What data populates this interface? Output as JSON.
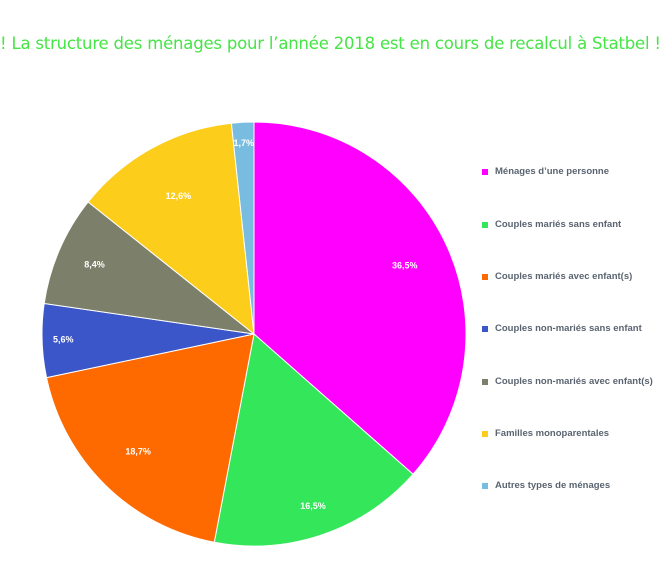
{
  "title": "! La structure des ménages pour l’année 2018 est en cours de recalcul à Statbel !",
  "chart_data": {
    "type": "pie",
    "title": "! La structure des ménages pour l’année 2018 est en cours de recalcul à Statbel !",
    "legend_position": "right",
    "slices": [
      {
        "name": " Ménages d’une personne",
        "value": 36.5,
        "label": "36,5%",
        "color": "#ff00ff"
      },
      {
        "name": "Couples mariés sans enfant",
        "value": 16.5,
        "label": "16,5%",
        "color": "#33e65a"
      },
      {
        "name": "Couples mariés avec enfant(s)",
        "value": 18.7,
        "label": "18,7%",
        "color": "#ff6a00"
      },
      {
        "name": "Couples non-mariés sans enfant",
        "value": 5.6,
        "label": "5,6%",
        "color": "#3a56c8"
      },
      {
        "name": "Couples non-mariés avec enfant(s)",
        "value": 8.4,
        "label": "8,4%",
        "color": "#7c806a"
      },
      {
        "name": "Familles monoparentales",
        "value": 12.6,
        "label": "12,6%",
        "color": "#fdcd1c"
      },
      {
        "name": "Autres types de ménages",
        "value": 1.7,
        "label": "1,7%",
        "color": "#78bde0"
      }
    ]
  }
}
